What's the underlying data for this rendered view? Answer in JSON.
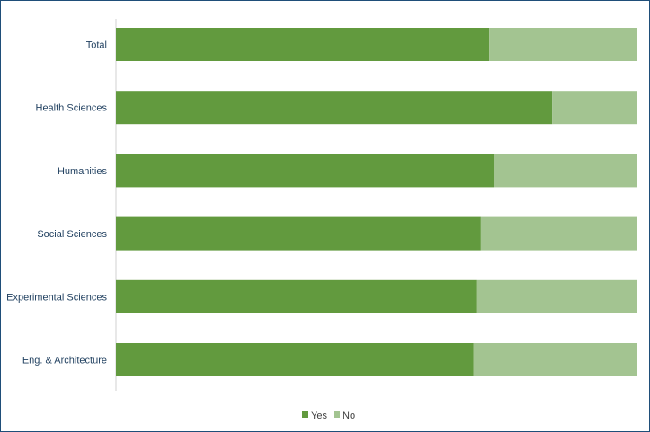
{
  "chart_data": {
    "type": "bar",
    "orientation": "horizontal",
    "stacked": "percent",
    "categories": [
      "Total",
      "Health Sciences",
      "Humanities",
      "Social Sciences",
      "Experimental Sciences",
      "Eng. & Architecture"
    ],
    "series": [
      {
        "name": "Yes",
        "color": "#629a3e",
        "values": [
          71.7,
          83.8,
          72.7,
          70.1,
          69.4,
          68.7
        ]
      },
      {
        "name": "No",
        "color": "#a3c491",
        "values": [
          28.3,
          16.2,
          27.3,
          29.9,
          30.6,
          31.3
        ]
      }
    ],
    "xlim": [
      0,
      100
    ],
    "grid": false,
    "legend": "bottom"
  }
}
